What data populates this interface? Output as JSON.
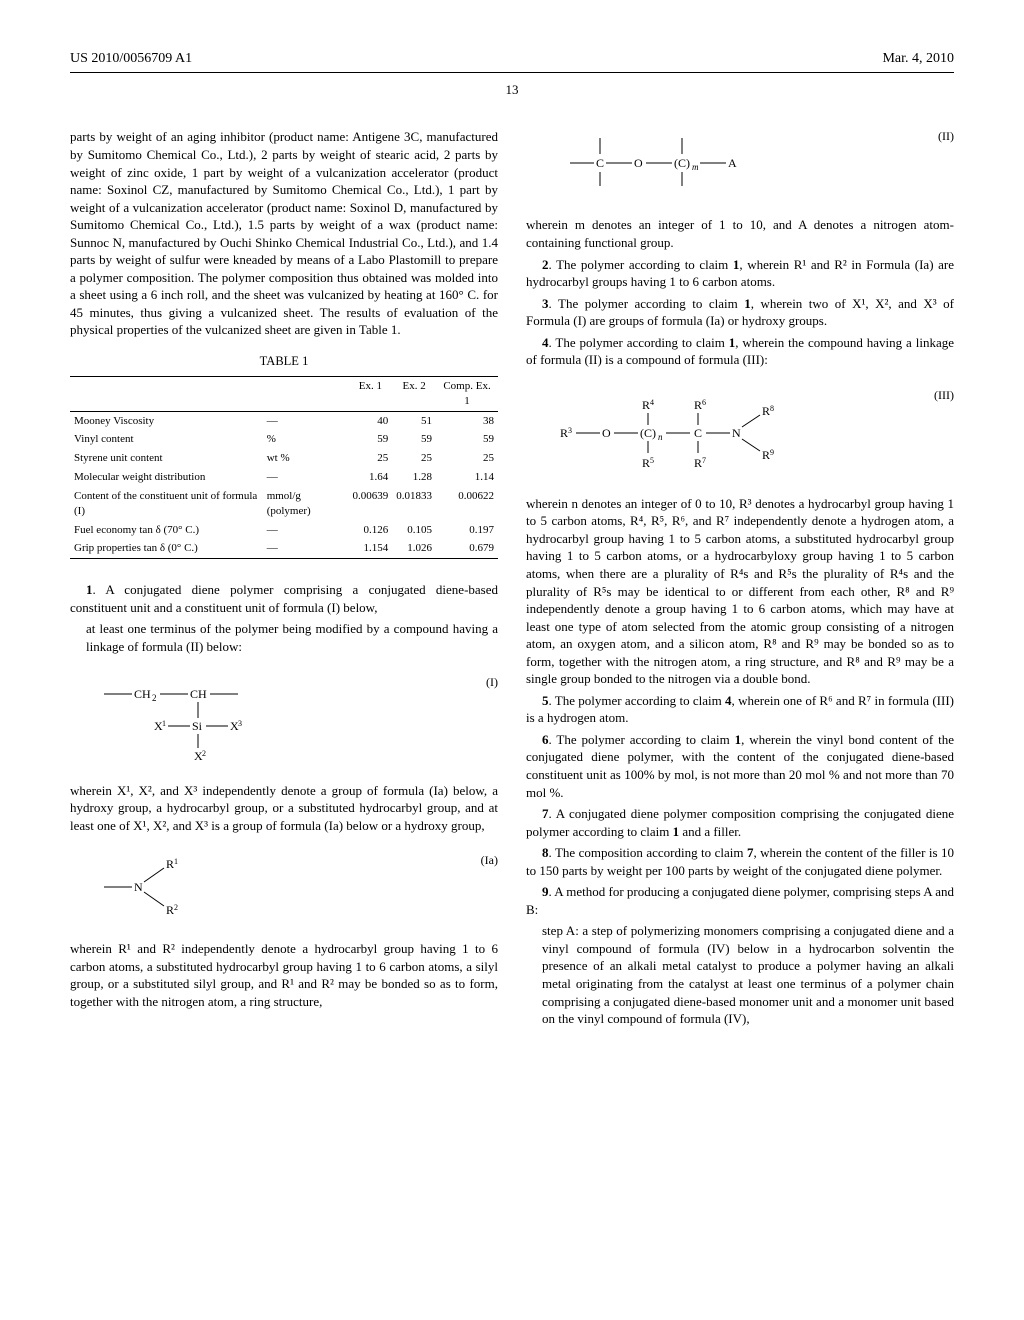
{
  "header": {
    "pub_number": "US 2010/0056709 A1",
    "pub_date": "Mar. 4, 2010"
  },
  "page_number": "13",
  "left_col": {
    "paragraph1": "parts by weight of an aging inhibitor (product name: Antigene 3C, manufactured by Sumitomo Chemical Co., Ltd.), 2 parts by weight of stearic acid, 2 parts by weight of zinc oxide, 1 part by weight of a vulcanization accelerator (product name: Soxinol CZ, manufactured by Sumitomo Chemical Co., Ltd.), 1 part by weight of a vulcanization accelerator (product name: Soxinol D, manufactured by Sumitomo Chemical Co., Ltd.), 1.5 parts by weight of a wax (product name: Sunnoc N, manufactured by Ouchi Shinko Chemical Industrial Co., Ltd.), and 1.4 parts by weight of sulfur were kneaded by means of a Labo Plastomill to prepare a polymer composition. The polymer composition thus obtained was molded into a sheet using a 6 inch roll, and the sheet was vulcanized by heating at 160° C. for 45 minutes, thus giving a vulcanized sheet. The results of evaluation of the physical properties of the vulcanized sheet are given in Table 1.",
    "table": {
      "caption": "TABLE 1",
      "columns": [
        "",
        "",
        "Ex. 1",
        "Ex. 2",
        "Comp. Ex. 1"
      ],
      "rows": [
        [
          "Mooney Viscosity",
          "—",
          "40",
          "51",
          "38"
        ],
        [
          "Vinyl content",
          "%",
          "59",
          "59",
          "59"
        ],
        [
          "Styrene unit content",
          "wt %",
          "25",
          "25",
          "25"
        ],
        [
          "Molecular weight distribution",
          "—",
          "1.64",
          "1.28",
          "1.14"
        ],
        [
          "Content of the constituent unit of formula (I)",
          "mmol/g (polymer)",
          "0.00639",
          "0.01833",
          "0.00622"
        ],
        [
          "Fuel economy tan δ (70° C.)",
          "—",
          "0.126",
          "0.105",
          "0.197"
        ],
        [
          "Grip properties tan δ (0° C.)",
          "—",
          "1.154",
          "1.026",
          "0.679"
        ]
      ]
    },
    "claim1_intro_num": "1",
    "claim1_intro": ". A conjugated diene polymer comprising a conjugated diene-based constituent unit and a constituent unit of formula (I) below,",
    "claim1_sub": "at least one terminus of the polymer being modified by a compound having a linkage of formula (II) below:",
    "formula_I_label": "(I)",
    "claim1_wherein": "wherein X¹, X², and X³ independently denote a group of formula (Ia) below, a hydroxy group, a hydrocarbyl group, or a substituted hydrocarbyl group, and at least one of X¹, X², and X³ is a group of formula (Ia) below or a hydroxy group,",
    "formula_Ia_label": "(Ia)",
    "claim1_wherein2": "wherein R¹ and R² independently denote a hydrocarbyl group having 1 to 6 carbon atoms, a substituted hydrocarbyl group having 1 to 6 carbon atoms, a silyl group, or a substituted silyl group, and R¹ and R² may be bonded so as to form, together with the nitrogen atom, a ring structure,"
  },
  "right_col": {
    "formula_II_label": "(II)",
    "claim1_cont": "wherein m denotes an integer of 1 to 10, and A denotes a nitrogen atom-containing functional group.",
    "claim2_num": "2",
    "claim2": ". The polymer according to claim 1, wherein R¹ and R² in Formula (Ia) are hydrocarbyl groups having 1 to 6 carbon atoms.",
    "claim3_num": "3",
    "claim3": ". The polymer according to claim 1, wherein two of X¹, X², and X³ of Formula (I) are groups of formula (Ia) or hydroxy groups.",
    "claim4_num": "4",
    "claim4": ". The polymer according to claim 1, wherein the compound having a linkage of formula (II) is a compound of formula (III):",
    "formula_III_label": "(III)",
    "claim4_wherein": "wherein n denotes an integer of 0 to 10, R³ denotes a hydrocarbyl group having 1 to 5 carbon atoms, R⁴, R⁵, R⁶, and R⁷ independently denote a hydrogen atom, a hydrocarbyl group having 1 to 5 carbon atoms, a substituted hydrocarbyl group having 1 to 5 carbon atoms, or a hydrocarbyloxy group having 1 to 5 carbon atoms, when there are a plurality of R⁴s and R⁵s the plurality of R⁴s and the plurality of R⁵s may be identical to or different from each other, R⁸ and R⁹ independently denote a group having 1 to 6 carbon atoms, which may have at least one type of atom selected from the atomic group consisting of a nitrogen atom, an oxygen atom, and a silicon atom, R⁸ and R⁹ may be bonded so as to form, together with the nitrogen atom, a ring structure, and R⁸ and R⁹ may be a single group bonded to the nitrogen via a double bond.",
    "claim5_num": "5",
    "claim5": ". The polymer according to claim 4, wherein one of R⁶ and R⁷ in formula (III) is a hydrogen atom.",
    "claim6_num": "6",
    "claim6": ". The polymer according to claim 1, wherein the vinyl bond content of the conjugated diene polymer, with the content of the conjugated diene-based constituent unit as 100% by mol, is not more than 20 mol % and not more than 70 mol %.",
    "claim7_num": "7",
    "claim7": ". A conjugated diene polymer composition comprising the conjugated diene polymer according to claim 1 and a filler.",
    "claim8_num": "8",
    "claim8": ". The composition according to claim 7, wherein the content of the filler is 10 to 150 parts by weight per 100 parts by weight of the conjugated diene polymer.",
    "claim9_num": "9",
    "claim9": ". A method for producing a conjugated diene polymer, comprising steps A and B:",
    "claim9_stepA": "step A: a step of polymerizing monomers comprising a conjugated diene and a vinyl compound of formula (IV) below in a hydrocarbon solventin the presence of an alkali metal catalyst to produce a polymer having an alkali metal originating from the catalyst at least one terminus of a polymer chain comprising a conjugated diene-based monomer unit and a monomer unit based on the vinyl compound of formula (IV),"
  }
}
